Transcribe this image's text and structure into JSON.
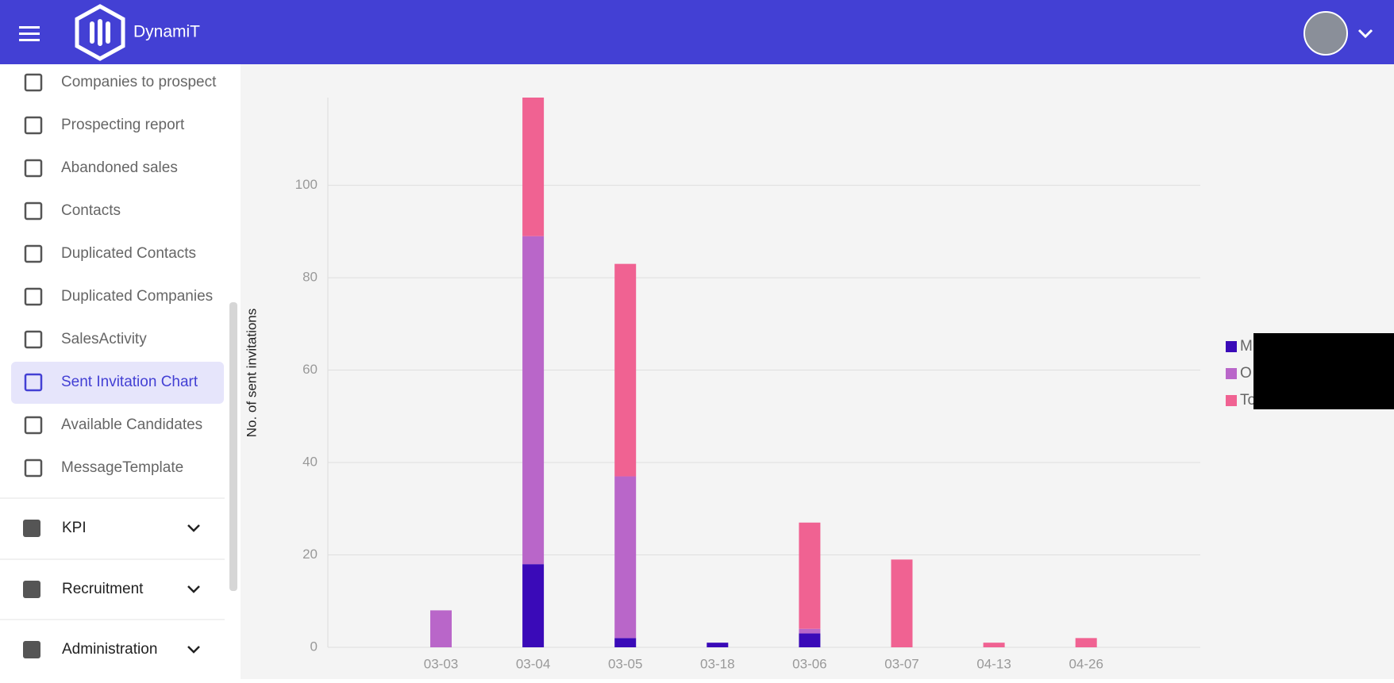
{
  "header": {
    "brand": "DynamiT"
  },
  "sidebar": {
    "items": [
      "Companies to prospect",
      "Prospecting report",
      "Abandoned sales",
      "Contacts",
      "Duplicated Contacts",
      "Duplicated Companies",
      "SalesActivity",
      "Sent Invitation Chart",
      "Available Candidates",
      "MessageTemplate"
    ],
    "sections": [
      "KPI",
      "Recruitment",
      "Administration"
    ]
  },
  "chart_data": {
    "type": "bar",
    "stacked": true,
    "y_label": "No. of sent invitations",
    "categories": [
      "03-03",
      "03-04",
      "03-05",
      "03-18",
      "03-06",
      "03-07",
      "04-13",
      "04-26"
    ],
    "series": [
      {
        "name": "M",
        "color": "#3a0ab8",
        "values": [
          0,
          18,
          2,
          1,
          3,
          0,
          0,
          0
        ]
      },
      {
        "name": "O",
        "color": "#b966c9",
        "values": [
          8,
          71,
          35,
          0,
          1,
          0,
          0,
          0
        ]
      },
      {
        "name": "To",
        "color": "#f06292",
        "values": [
          0,
          30,
          46,
          0,
          23,
          19,
          1,
          2
        ]
      }
    ],
    "ylim": [
      0,
      119
    ],
    "yticks": [
      0,
      20,
      40,
      60,
      80,
      100
    ],
    "grid": true
  }
}
